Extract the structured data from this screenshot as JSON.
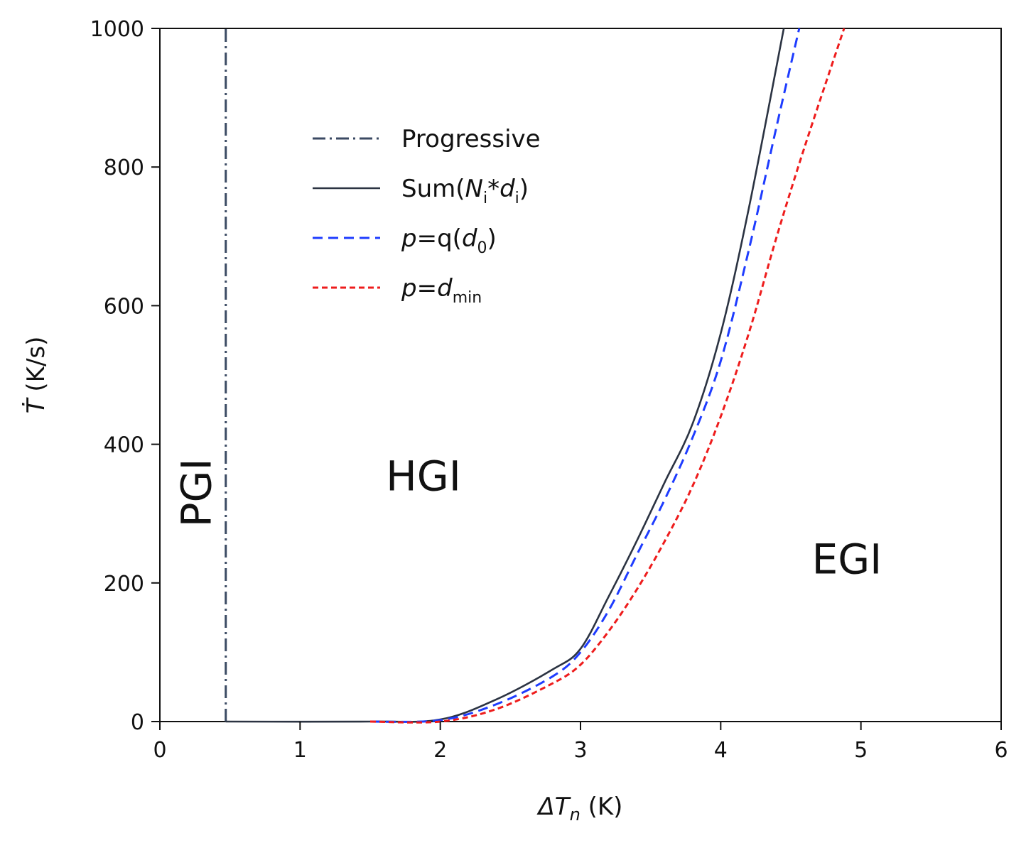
{
  "chart_data": {
    "type": "line",
    "title": "",
    "xlabel": "ΔTn (K)",
    "xlabel_italic": "ΔT",
    "xlabel_sub": "n",
    "xlabel_unit": " (K)",
    "ylabel": "Ṫ (K/s)",
    "ylabel_symbol": "Ṫ",
    "ylabel_unit": "(K/s)",
    "xlim": [
      0,
      6
    ],
    "ylim": [
      0,
      1000
    ],
    "xticks": [
      "0",
      "1",
      "2",
      "3",
      "4",
      "5",
      "6"
    ],
    "yticks": [
      "0",
      "200",
      "400",
      "600",
      "800",
      "1000"
    ],
    "grid": false,
    "legend_position": "upper-left-center",
    "series": [
      {
        "name": "Progressive",
        "style": "dash-dot",
        "color": "#3b4a63",
        "x": [
          0.47,
          0.47
        ],
        "y": [
          0,
          1000
        ]
      },
      {
        "name": "Sum(Ni*di)",
        "style": "solid",
        "color": "#2b3342",
        "x": [
          0.47,
          1.5,
          2.0,
          2.4,
          2.8,
          3.0,
          3.2,
          3.4,
          3.6,
          3.8,
          4.0,
          4.2,
          4.45
        ],
        "y": [
          0,
          0,
          3,
          32,
          75,
          105,
          180,
          260,
          345,
          430,
          560,
          740,
          1000
        ]
      },
      {
        "name": "p=q(d0)",
        "style": "dashed",
        "color": "#1e3cff",
        "x": [
          1.5,
          2.0,
          2.4,
          2.8,
          3.0,
          3.2,
          3.4,
          3.6,
          3.8,
          4.0,
          4.2,
          4.4,
          4.56
        ],
        "y": [
          0,
          2,
          25,
          65,
          100,
          160,
          240,
          320,
          410,
          520,
          680,
          860,
          1000
        ]
      },
      {
        "name": "p=dmin",
        "style": "short-dashed",
        "color": "#ee1c1c",
        "x": [
          1.5,
          2.0,
          2.4,
          2.8,
          3.0,
          3.2,
          3.4,
          3.6,
          3.8,
          4.0,
          4.2,
          4.4,
          4.6,
          4.88
        ],
        "y": [
          0,
          0,
          18,
          55,
          82,
          130,
          190,
          260,
          340,
          440,
          560,
          700,
          830,
          1000
        ]
      }
    ],
    "legend": [
      {
        "main": "Progressive",
        "parts": [
          {
            "t": "Progressive",
            "s": "n"
          }
        ]
      },
      {
        "main": "Sum(Ni*di)",
        "parts": [
          {
            "t": "Sum(",
            "s": "n"
          },
          {
            "t": "N",
            "s": "i"
          },
          {
            "t": "i",
            "s": "sub"
          },
          {
            "t": "*",
            "s": "n"
          },
          {
            "t": "d",
            "s": "i"
          },
          {
            "t": "i",
            "s": "sub"
          },
          {
            "t": ")",
            "s": "n"
          }
        ]
      },
      {
        "main": "p=q(d0)",
        "parts": [
          {
            "t": "p",
            "s": "i"
          },
          {
            "t": "=q(",
            "s": "n"
          },
          {
            "t": "d",
            "s": "i"
          },
          {
            "t": "0",
            "s": "sub"
          },
          {
            "t": ")",
            "s": "n"
          }
        ]
      },
      {
        "main": "p=dmin",
        "parts": [
          {
            "t": "p",
            "s": "i"
          },
          {
            "t": "=",
            "s": "n"
          },
          {
            "t": "d",
            "s": "i"
          },
          {
            "t": "min",
            "s": "sub"
          }
        ]
      }
    ],
    "annotations": [
      {
        "text": "PGI",
        "x": 0.28,
        "y": 330,
        "rotate": -90
      },
      {
        "text": "HGI",
        "x": 1.88,
        "y": 350,
        "rotate": 0
      },
      {
        "text": "EGI",
        "x": 4.9,
        "y": 230,
        "rotate": 0
      }
    ]
  }
}
